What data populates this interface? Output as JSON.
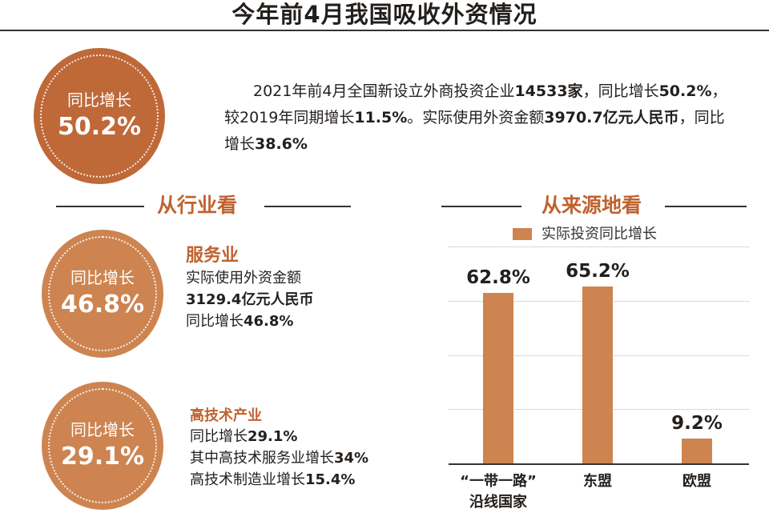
{
  "title": "今年前4月我国吸收外资情况",
  "summary": {
    "circle_label": "同比增长",
    "circle_value": "50.2%",
    "text_parts": [
      "2021年前4月全国新设立外商投资企业",
      "14533家",
      "，同比增长",
      "50.2%",
      "，较2019年同期增长",
      "11.5%",
      "。实际使用外资金额",
      "3970.7亿元人民币",
      "，同比增长",
      "38.6%"
    ]
  },
  "industry": {
    "section_title": "从行业看",
    "services": {
      "circle_label": "同比增长",
      "circle_value": "46.8%",
      "heading": "服务业",
      "line1": "实际使用外资金额",
      "line2": "3129.4亿元人民币",
      "line3_prefix": "同比增长",
      "line3_value": "46.8%"
    },
    "hightech": {
      "circle_label": "同比增长",
      "circle_value": "29.1%",
      "heading": "高技术产业",
      "line1_prefix": "同比增长",
      "line1_value": "29.1%",
      "line2_prefix": "其中高技术服务业增长",
      "line2_value": "34%",
      "line3_prefix": "高技术制造业增长",
      "line3_value": "15.4%"
    }
  },
  "colors": {
    "accent": "#c0622f",
    "bar": "#cd8450",
    "circle_dark": "#bf6838",
    "circle_light": "#cd8450"
  },
  "chart_data": {
    "type": "bar",
    "title": "从来源地看",
    "legend": [
      "实际投资同比增长"
    ],
    "legend_position": "top",
    "categories": [
      "“一带一路”",
      "东盟",
      "欧盟"
    ],
    "category_sublabels": [
      "沿线国家",
      "",
      ""
    ],
    "values": [
      62.8,
      65.2,
      9.2
    ],
    "value_labels": [
      "62.8%",
      "65.2%",
      "9.2%"
    ],
    "ylim": [
      0,
      80
    ],
    "grid_step": 20,
    "grid": true,
    "xlabel": "",
    "ylabel": ""
  }
}
